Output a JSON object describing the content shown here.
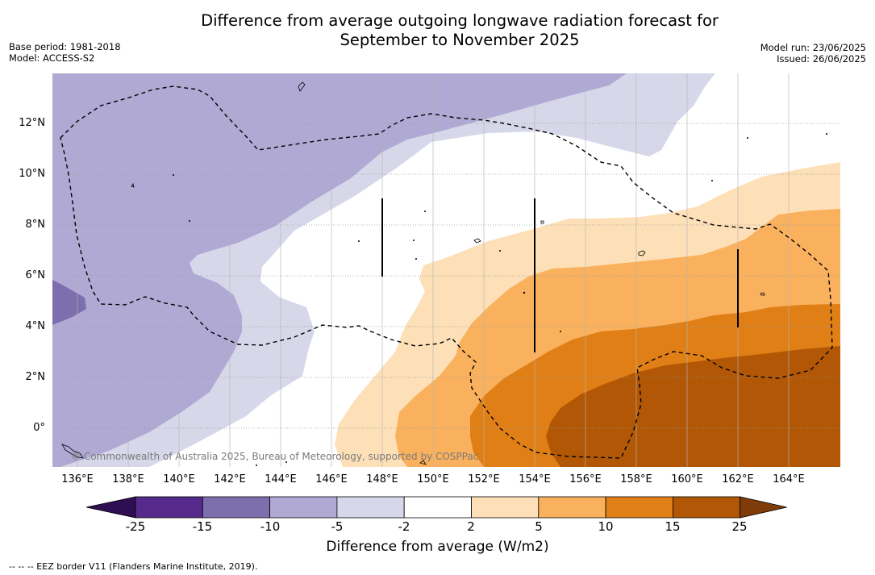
{
  "title_line1": "Difference from average outgoing longwave radiation forecast for",
  "title_line2": "September to November 2025",
  "meta_left": {
    "base_period": "Base period: 1981-2018",
    "model": "Model: ACCESS-S2"
  },
  "meta_right": {
    "model_run": "Model run: 23/06/2025",
    "issued": "Issued: 26/06/2025"
  },
  "map": {
    "lat_labels": [
      "12°N",
      "10°N",
      "8°N",
      "6°N",
      "4°N",
      "2°N",
      "0°"
    ],
    "lon_labels": [
      "136°E",
      "138°E",
      "140°E",
      "142°E",
      "144°E",
      "146°E",
      "148°E",
      "150°E",
      "152°E",
      "154°E",
      "156°E",
      "158°E",
      "160°E",
      "162°E",
      "164°E"
    ],
    "copyright": "© Commonwealth of Australia 2025, Bureau of Meteorology, supported by COSPPac"
  },
  "colorbar": {
    "ticks": [
      "-25",
      "-15",
      "-10",
      "-5",
      "-2",
      "2",
      "5",
      "10",
      "15",
      "25"
    ],
    "colors": [
      "#2e0f54",
      "#562a8a",
      "#7d6fad",
      "#b0a9d4",
      "#d7d7ea",
      "#ffffff",
      "#fde0b7",
      "#fab15e",
      "#e07f16",
      "#b15705",
      "#7f3b08"
    ],
    "label": "Difference from average (W/m2)"
  },
  "footnote": "--  --  -- EEZ border V11 (Flanders Marine Institute, 2019)."
}
